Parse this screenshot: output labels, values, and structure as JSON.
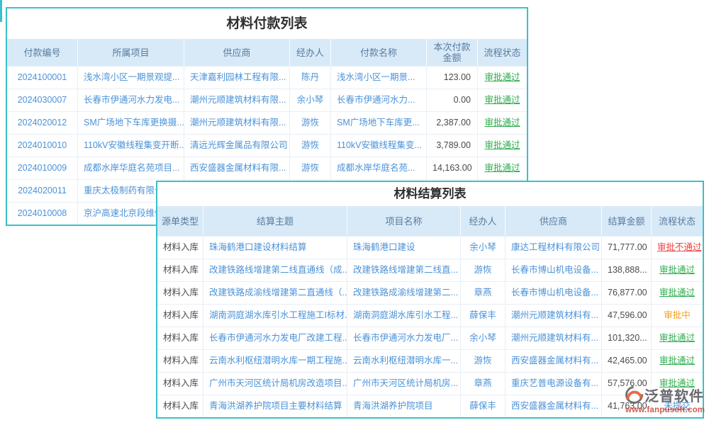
{
  "colors": {
    "accent_teal": "#3bc0c9",
    "header_bg": "#d8eaf8",
    "header_text": "#587b9e",
    "link_blue": "#4a92d8",
    "status_green": "#2ead4e",
    "status_red": "#f4413d",
    "status_orange": "#f5a01d",
    "status_blue": "#4a92d8"
  },
  "payment_table": {
    "title": "材料付款列表",
    "columns": [
      "付款编号",
      "所属项目",
      "供应商",
      "经办人",
      "付款名称",
      "本次付款金额",
      "流程状态"
    ],
    "col_names": [
      "payment-id-link",
      "project-link",
      "supplier-link",
      "handler-link",
      "payment-name-link",
      "amount-value"
    ],
    "col_types": [
      "link ctr",
      "link",
      "link",
      "link ctr",
      "link",
      "num"
    ],
    "rows": [
      {
        "cells": [
          "2024100001",
          "浅水湾小区一期景观提...",
          "天津嘉利园林工程有限...",
          "陈丹",
          "浅水湾小区一期景...",
          "123.00"
        ],
        "status": {
          "text": "审批通过",
          "color": "#2ead4e",
          "underline": true
        }
      },
      {
        "cells": [
          "2024030007",
          "长春市伊通河水力发电...",
          "潮州元顺建筑材料有限...",
          "余小琴",
          "长春市伊通河水力...",
          "0.00"
        ],
        "status": {
          "text": "审批通过",
          "color": "#2ead4e",
          "underline": true
        }
      },
      {
        "cells": [
          "2024020012",
          "SM广场地下车库更换摄...",
          "潮州元顺建筑材料有限...",
          "游恢",
          "SM广场地下车库更...",
          "2,387.00"
        ],
        "status": {
          "text": "审批通过",
          "color": "#2ead4e",
          "underline": true
        }
      },
      {
        "cells": [
          "2024010010",
          "110kV安徽线程集变开断...",
          "清远光辉金属品有限公司",
          "游恢",
          "110kV安徽线程集变...",
          "3,789.00"
        ],
        "status": {
          "text": "审批通过",
          "color": "#2ead4e",
          "underline": true
        }
      },
      {
        "cells": [
          "2024010009",
          "成都水岸华庭名苑项目...",
          "西安盛器金属材料有限...",
          "游恢",
          "成都水岸华庭名苑...",
          "14,163.00"
        ],
        "status": {
          "text": "审批通过",
          "color": "#2ead4e",
          "underline": true
        }
      },
      {
        "cells": [
          "2024020011",
          "重庆太极制药有限公司",
          "",
          "",
          "",
          ""
        ],
        "status": null
      },
      {
        "cells": [
          "2024010008",
          "京沪高速北京段维修",
          "",
          "",
          "",
          ""
        ],
        "status": null
      }
    ]
  },
  "settlement_table": {
    "title": "材料结算列表",
    "columns": [
      "源单类型",
      "结算主题",
      "项目名称",
      "经办人",
      "供应商",
      "结算金额",
      "流程状态"
    ],
    "col_names": [
      "source-type",
      "settlement-subject-link",
      "project-name-link",
      "handler-link",
      "supplier-link",
      "amount-value"
    ],
    "col_types": [
      "txt ctr",
      "link",
      "link",
      "link ctr",
      "link",
      "num"
    ],
    "rows": [
      {
        "cells": [
          "材料入库",
          "珠海鹤港口建设材料结算",
          "珠海鹤港口建设",
          "余小琴",
          "康达工程材料有限公司",
          "71,777.00"
        ],
        "status": {
          "text": "审批不通过",
          "color": "#f4413d",
          "underline": true
        }
      },
      {
        "cells": [
          "材料入库",
          "改建铁路线增建第二线直通线（成...",
          "改建铁路线增建第二线直...",
          "游恢",
          "长春市博山机电设备...",
          "138,888..."
        ],
        "status": {
          "text": "审批通过",
          "color": "#2ead4e",
          "underline": true
        }
      },
      {
        "cells": [
          "材料入库",
          "改建铁路成渝线增建第二直通线（...",
          "改建铁路成渝线增建第二...",
          "章燕",
          "长春市博山机电设备...",
          "76,877.00"
        ],
        "status": {
          "text": "审批通过",
          "color": "#2ead4e",
          "underline": true
        }
      },
      {
        "cells": [
          "材料入库",
          "湖南洞庭湖水库引水工程施工I标材...",
          "湖南洞庭湖水库引水工程...",
          "薛保丰",
          "潮州元顺建筑材料有...",
          "47,596.00"
        ],
        "status": {
          "text": "审批中",
          "color": "#f5a01d",
          "underline": false
        }
      },
      {
        "cells": [
          "材料入库",
          "长春市伊通河水力发电厂改建工程...",
          "长春市伊通河水力发电厂...",
          "余小琴",
          "潮州元顺建筑材料有...",
          "101,320..."
        ],
        "status": {
          "text": "审批通过",
          "color": "#2ead4e",
          "underline": true
        }
      },
      {
        "cells": [
          "材料入库",
          "云南水利枢纽潜明水库一期工程施...",
          "云南水利枢纽潜明水库一...",
          "游恢",
          "西安盛器金属材料有...",
          "42,465.00"
        ],
        "status": {
          "text": "审批通过",
          "color": "#2ead4e",
          "underline": true
        }
      },
      {
        "cells": [
          "材料入库",
          "广州市天河区统计局机房改造项目...",
          "广州市天河区统计局机房...",
          "章燕",
          "重庆艺普电源设备有...",
          "57,576.00"
        ],
        "status": {
          "text": "审批通过",
          "color": "#2ead4e",
          "underline": true
        }
      },
      {
        "cells": [
          "材料入库",
          "青海洪湖养护院项目主要材料结算",
          "青海洪湖养护院项目",
          "薛保丰",
          "西安盛器金属材料有...",
          "41,763.00"
        ],
        "status": {
          "text": "未提交",
          "color": "#4a92d8",
          "underline": true
        }
      }
    ]
  },
  "watermark": {
    "brand": "泛普软件",
    "url": "www.fanpusoft.com"
  }
}
